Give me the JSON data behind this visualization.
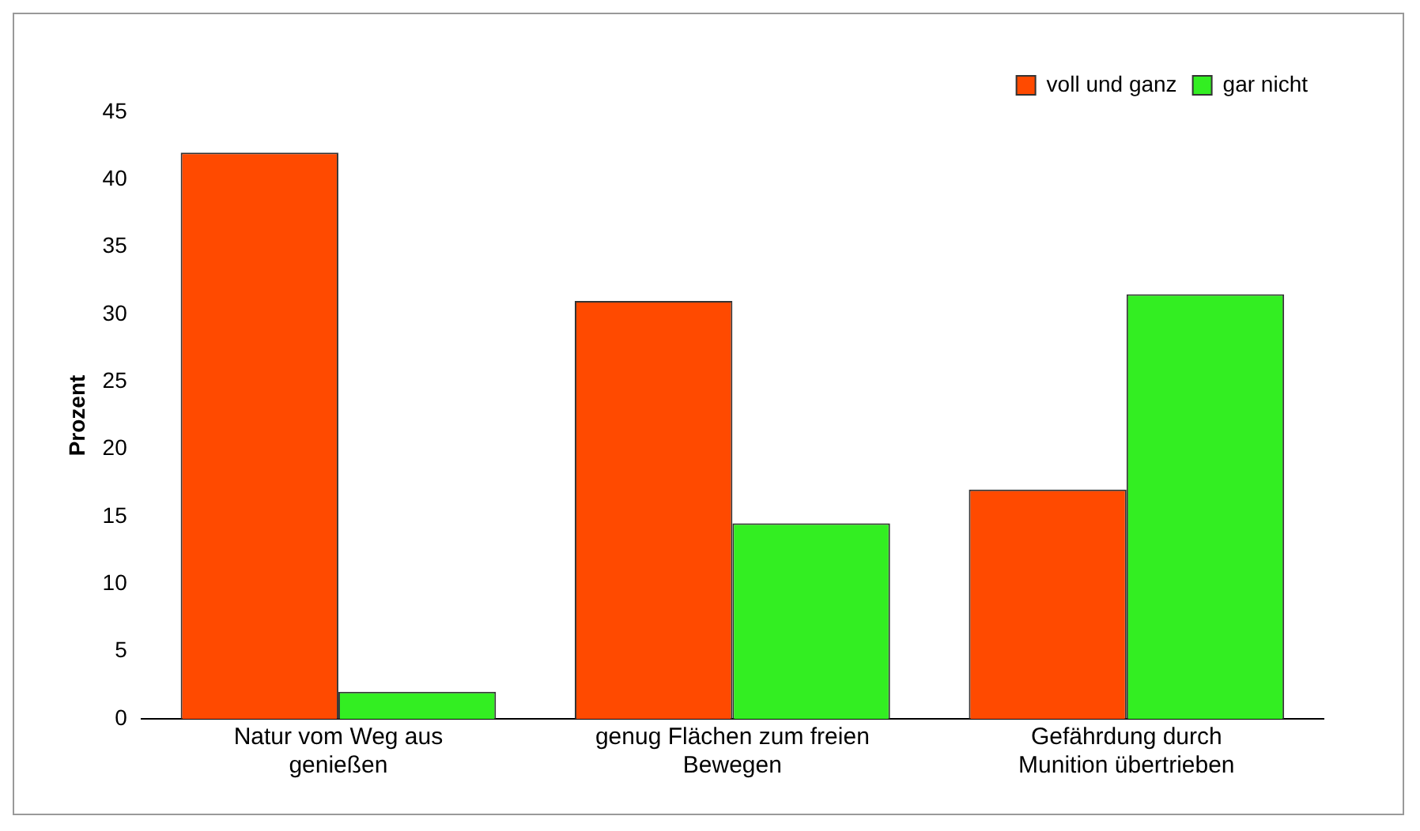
{
  "chart_data": {
    "type": "bar",
    "ylabel": "Prozent",
    "categories": [
      "Natur vom Weg aus genießen",
      "genug Flächen zum freien Bewegen",
      "Gefährdung durch Munition übertrieben"
    ],
    "series": [
      {
        "name": "voll und ganz",
        "color": "#ff4a00",
        "values": [
          42,
          31,
          17
        ]
      },
      {
        "name": "gar nicht",
        "color": "#33ee22",
        "values": [
          2,
          14.5,
          31.5
        ]
      }
    ],
    "ylim": [
      0,
      45
    ],
    "yticks": [
      0,
      5,
      10,
      15,
      20,
      25,
      30,
      35,
      40,
      45
    ],
    "grid": false,
    "legend": "top right"
  }
}
